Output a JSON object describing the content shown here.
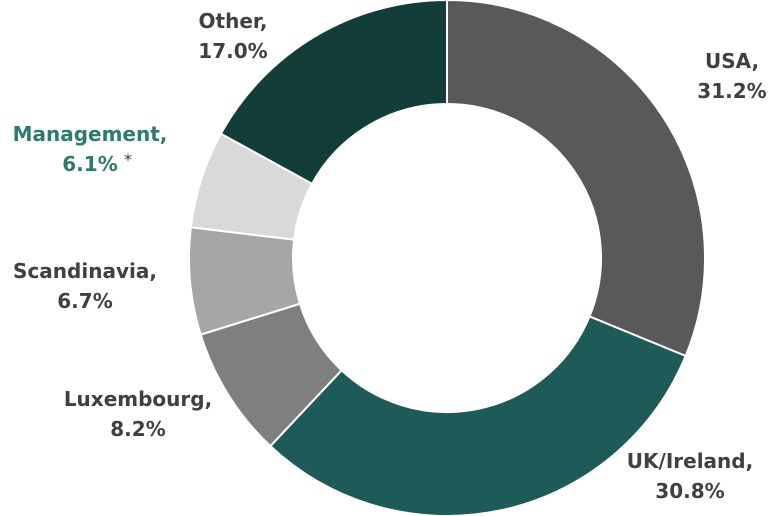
{
  "chart_data": {
    "type": "pie",
    "donut": true,
    "categories": [
      "USA,",
      "UK/Ireland,",
      "Luxembourg,",
      "Scandinavia,",
      "Management,",
      "Other,"
    ],
    "values": [
      31.2,
      30.8,
      8.2,
      6.7,
      6.1,
      17.0
    ],
    "value_labels": [
      "31.2%",
      "30.8%",
      "8.2%",
      "6.7%",
      "6.1%",
      "17.0%"
    ],
    "colors": [
      "#595959",
      "#1e5a57",
      "#7f7f7f",
      "#a6a6a6",
      "#d9d9d9",
      "#133d38"
    ],
    "label_colors": [
      "#404040",
      "#404040",
      "#404040",
      "#404040",
      "#2e7a6e",
      "#404040"
    ],
    "annotation": "*"
  }
}
